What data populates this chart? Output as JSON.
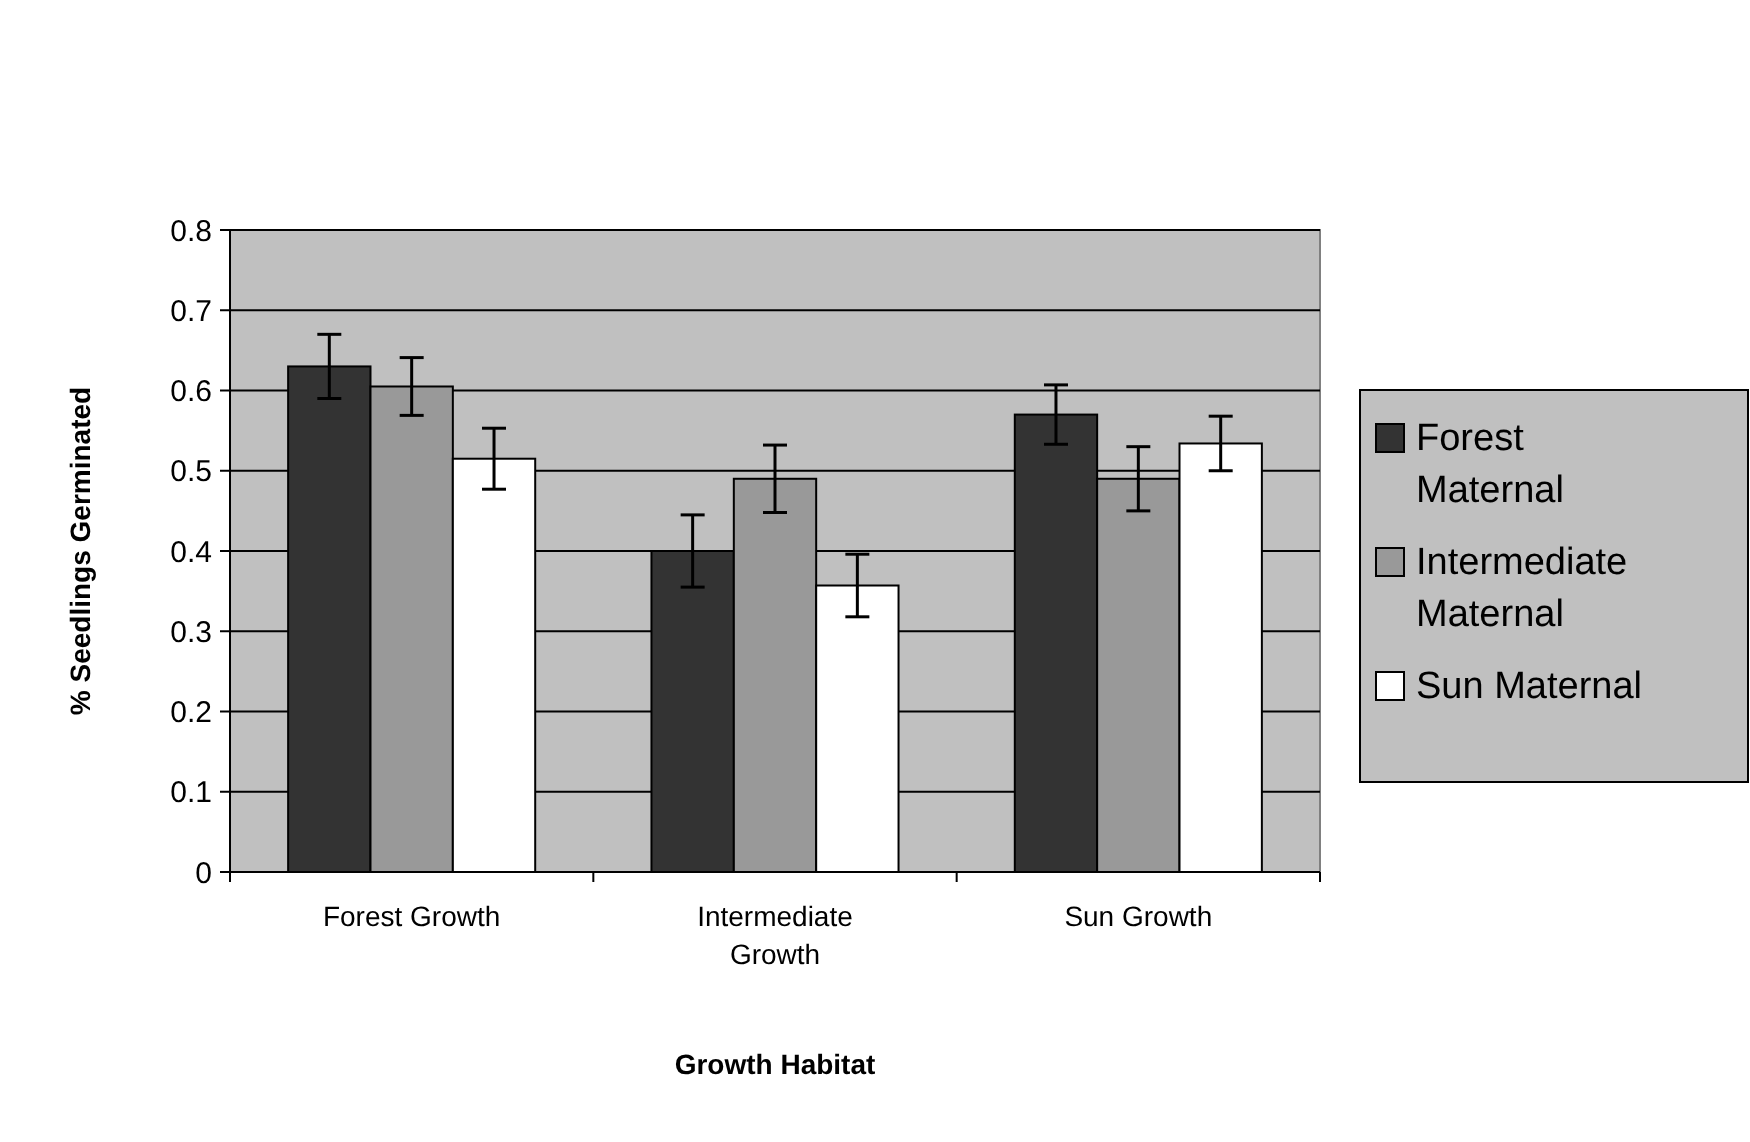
{
  "chart_data": {
    "type": "bar",
    "xlabel": "Growth Habitat",
    "ylabel": "% Seedlings Germinated",
    "categories": [
      "Forest Growth",
      "Intermediate Growth",
      "Sun Growth"
    ],
    "series": [
      {
        "name": "Forest Maternal",
        "color": "#333333",
        "values": [
          0.63,
          0.4,
          0.57
        ],
        "errors": [
          0.04,
          0.045,
          0.037
        ]
      },
      {
        "name": "Intermediate Maternal",
        "color": "#999999",
        "values": [
          0.605,
          0.49,
          0.49
        ],
        "errors": [
          0.036,
          0.042,
          0.04
        ]
      },
      {
        "name": "Sun Maternal",
        "color": "#ffffff",
        "values": [
          0.515,
          0.357,
          0.534
        ],
        "errors": [
          0.038,
          0.039,
          0.034
        ]
      }
    ],
    "ylim": [
      0,
      0.8
    ],
    "yticks": [
      0,
      0.1,
      0.2,
      0.3,
      0.4,
      0.5,
      0.6,
      0.7,
      0.8
    ],
    "grid": "y",
    "legend": "right"
  }
}
